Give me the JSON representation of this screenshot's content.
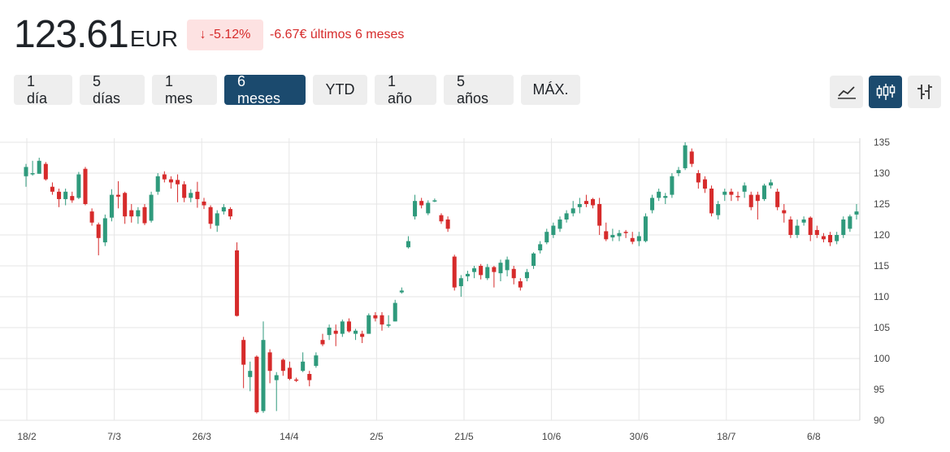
{
  "quote": {
    "price": "123.61",
    "currency": "EUR",
    "change_pct": "-5.12%",
    "change_abs": "-6.67€ últimos 6 meses",
    "down_color": "#d62b2b",
    "up_color": "#2f9a7c"
  },
  "ranges": [
    {
      "label": "1 día",
      "active": false
    },
    {
      "label": "5 días",
      "active": false
    },
    {
      "label": "1 mes",
      "active": false
    },
    {
      "label": "6 meses",
      "active": true
    },
    {
      "label": "YTD",
      "active": false
    },
    {
      "label": "1 año",
      "active": false
    },
    {
      "label": "5 años",
      "active": false
    },
    {
      "label": "MÁX.",
      "active": false
    }
  ],
  "chart_types": [
    {
      "icon": "line-chart-icon",
      "active": false
    },
    {
      "icon": "candlestick-icon",
      "active": true
    },
    {
      "icon": "ohlc-bars-icon",
      "active": false
    }
  ],
  "chart_data": {
    "type": "candlestick",
    "x_tick_labels": [
      "18/2",
      "7/3",
      "26/3",
      "14/4",
      "2/5",
      "21/5",
      "10/6",
      "30/6",
      "18/7",
      "6/8"
    ],
    "y_ticks": [
      90,
      95,
      100,
      105,
      110,
      115,
      120,
      125,
      130,
      135
    ],
    "ylim": [
      90,
      135
    ],
    "grid": true,
    "y_axis_position": "right",
    "series": [
      [
        129.5,
        131.0,
        127.8,
        131.5
      ],
      [
        130.0,
        130.0,
        129.6,
        132.0
      ],
      [
        129.9,
        132.0,
        129.9,
        132.5
      ],
      [
        131.5,
        129.0,
        128.8,
        131.8
      ],
      [
        127.8,
        127.0,
        126.5,
        128.5
      ],
      [
        127.0,
        125.8,
        124.5,
        127.5
      ],
      [
        125.8,
        127.0,
        124.8,
        127.5
      ],
      [
        126.3,
        125.6,
        125.2,
        127.0
      ],
      [
        126.0,
        129.8,
        125.8,
        130.2
      ],
      [
        130.7,
        125.0,
        124.8,
        131.0
      ],
      [
        123.8,
        122.0,
        121.5,
        124.3
      ],
      [
        121.7,
        119.5,
        116.7,
        122.0
      ],
      [
        118.8,
        122.7,
        118.2,
        123.3
      ],
      [
        122.8,
        126.5,
        122.2,
        127.4
      ],
      [
        126.5,
        126.2,
        124.3,
        128.7
      ],
      [
        126.8,
        123.0,
        121.8,
        127.0
      ],
      [
        124.0,
        123.0,
        122.0,
        125.0
      ],
      [
        123.0,
        124.0,
        121.8,
        124.5
      ],
      [
        124.5,
        121.9,
        121.6,
        125.0
      ],
      [
        122.3,
        126.5,
        122.0,
        127.0
      ],
      [
        127.0,
        129.5,
        126.5,
        130.0
      ],
      [
        129.8,
        129.0,
        128.5,
        130.3
      ],
      [
        129.0,
        128.5,
        127.5,
        129.5
      ],
      [
        128.9,
        128.2,
        125.3,
        129.8
      ],
      [
        128.2,
        126.0,
        125.3,
        128.7
      ],
      [
        126.0,
        126.8,
        125.3,
        127.4
      ],
      [
        127.0,
        125.8,
        124.4,
        128.6
      ],
      [
        125.4,
        124.8,
        124.2,
        126.0
      ],
      [
        124.5,
        121.8,
        121.0,
        124.8
      ],
      [
        121.5,
        123.5,
        120.5,
        124.0
      ],
      [
        123.8,
        124.5,
        123.3,
        125.0
      ],
      [
        124.2,
        123.0,
        122.5,
        124.5
      ],
      [
        117.5,
        106.9,
        106.8,
        118.8
      ],
      [
        103.0,
        99.0,
        95.2,
        103.5
      ],
      [
        97.0,
        98.0,
        94.7,
        99.5
      ],
      [
        100.3,
        91.3,
        91.1,
        100.5
      ],
      [
        91.5,
        103.0,
        91.2,
        106.0
      ],
      [
        101.0,
        98.0,
        96.0,
        101.5
      ],
      [
        96.5,
        97.3,
        91.5,
        97.8
      ],
      [
        99.8,
        98.0,
        97.2,
        100.0
      ],
      [
        98.5,
        96.7,
        96.5,
        99.5
      ],
      [
        96.6,
        96.5,
        96.2,
        96.9
      ],
      [
        98.0,
        99.5,
        97.8,
        101.0
      ],
      [
        97.5,
        96.5,
        95.5,
        98.0
      ],
      [
        98.8,
        100.5,
        98.5,
        101.0
      ],
      [
        103.0,
        102.3,
        102.0,
        104.0
      ],
      [
        103.8,
        105.0,
        103.0,
        105.5
      ],
      [
        104.5,
        104.0,
        102.0,
        105.5
      ],
      [
        104.0,
        106.0,
        103.5,
        106.3
      ],
      [
        106.0,
        104.4,
        104.2,
        106.5
      ],
      [
        104.0,
        104.5,
        103.0,
        104.8
      ],
      [
        104.0,
        103.5,
        102.5,
        104.5
      ],
      [
        104.0,
        107.0,
        104.0,
        107.3
      ],
      [
        107.0,
        106.5,
        106.0,
        107.5
      ],
      [
        107.0,
        105.5,
        104.5,
        107.5
      ],
      [
        105.3,
        105.5,
        105.0,
        107.0
      ],
      [
        106.0,
        109.0,
        106.0,
        109.5
      ],
      [
        110.7,
        111.0,
        110.5,
        111.5
      ],
      [
        118.0,
        119.0,
        117.8,
        119.8
      ],
      [
        123.0,
        125.5,
        122.5,
        126.5
      ],
      [
        125.5,
        124.8,
        124.3,
        126.0
      ],
      [
        123.5,
        125.2,
        123.2,
        125.6
      ],
      [
        125.5,
        125.6,
        125.3,
        125.9
      ],
      [
        123.2,
        122.2,
        121.8,
        123.5
      ],
      [
        122.5,
        121.0,
        120.5,
        123.0
      ],
      [
        116.5,
        111.5,
        111.0,
        116.8
      ],
      [
        111.7,
        113.0,
        110.0,
        113.5
      ],
      [
        113.3,
        113.7,
        112.5,
        114.2
      ],
      [
        114.0,
        114.6,
        113.0,
        115.0
      ],
      [
        115.0,
        113.5,
        112.8,
        115.3
      ],
      [
        113.0,
        114.8,
        112.7,
        115.3
      ],
      [
        114.8,
        114.0,
        111.5,
        115.0
      ],
      [
        113.8,
        115.5,
        112.5,
        116.0
      ],
      [
        114.3,
        116.0,
        113.3,
        116.5
      ],
      [
        114.5,
        113.0,
        112.0,
        115.0
      ],
      [
        112.5,
        111.5,
        111.0,
        113.0
      ],
      [
        113.0,
        114.0,
        112.5,
        114.5
      ],
      [
        115.0,
        117.0,
        114.5,
        117.2
      ],
      [
        117.5,
        118.5,
        117.0,
        119.0
      ],
      [
        118.8,
        120.5,
        118.5,
        121.0
      ],
      [
        120.0,
        121.5,
        119.5,
        122.0
      ],
      [
        121.0,
        122.5,
        120.5,
        123.0
      ],
      [
        122.5,
        123.5,
        122.0,
        124.0
      ],
      [
        123.5,
        124.3,
        123.0,
        125.5
      ],
      [
        124.5,
        125.0,
        123.5,
        126.0
      ],
      [
        125.5,
        125.0,
        124.5,
        126.5
      ],
      [
        125.8,
        124.8,
        124.3,
        126.0
      ],
      [
        125.0,
        121.5,
        120.0,
        126.0
      ],
      [
        120.6,
        119.3,
        119.0,
        122.0
      ],
      [
        119.6,
        120.0,
        119.0,
        121.0
      ],
      [
        119.8,
        120.3,
        119.0,
        120.8
      ],
      [
        120.5,
        120.3,
        119.5,
        120.8
      ],
      [
        119.5,
        118.9,
        118.5,
        120.5
      ],
      [
        119.0,
        119.8,
        118.2,
        120.5
      ],
      [
        119.0,
        123.0,
        118.8,
        123.5
      ],
      [
        124.0,
        126.0,
        123.5,
        126.5
      ],
      [
        126.0,
        127.0,
        125.5,
        127.5
      ],
      [
        126.0,
        126.3,
        125.0,
        126.8
      ],
      [
        126.5,
        129.5,
        126.0,
        130.0
      ],
      [
        130.0,
        130.5,
        129.5,
        131.0
      ],
      [
        130.8,
        134.5,
        130.5,
        135.0
      ],
      [
        133.5,
        131.5,
        131.0,
        134.0
      ],
      [
        130.0,
        128.5,
        127.5,
        130.5
      ],
      [
        129.0,
        127.5,
        126.8,
        129.5
      ],
      [
        127.5,
        123.5,
        123.0,
        128.0
      ],
      [
        123.2,
        125.0,
        122.5,
        125.5
      ],
      [
        126.5,
        127.0,
        125.5,
        127.5
      ],
      [
        127.0,
        126.5,
        125.5,
        127.5
      ],
      [
        126.3,
        126.2,
        125.5,
        127.0
      ],
      [
        127.0,
        128.0,
        126.0,
        128.5
      ],
      [
        126.5,
        124.5,
        124.0,
        127.0
      ],
      [
        126.5,
        125.5,
        122.5,
        127.0
      ],
      [
        125.8,
        128.0,
        125.5,
        128.3
      ],
      [
        128.0,
        128.5,
        127.5,
        129.0
      ],
      [
        127.0,
        124.5,
        124.0,
        127.5
      ],
      [
        124.0,
        123.5,
        122.0,
        125.0
      ],
      [
        122.5,
        120.0,
        119.5,
        123.0
      ],
      [
        120.0,
        121.5,
        119.5,
        122.5
      ],
      [
        122.0,
        122.5,
        121.5,
        123.0
      ],
      [
        122.8,
        120.0,
        119.0,
        123.0
      ],
      [
        120.8,
        120.0,
        119.5,
        121.5
      ],
      [
        119.8,
        119.3,
        118.8,
        120.3
      ],
      [
        120.0,
        118.8,
        118.2,
        120.5
      ],
      [
        119.0,
        120.0,
        118.5,
        120.5
      ],
      [
        120.0,
        122.5,
        119.5,
        123.0
      ],
      [
        121.0,
        123.0,
        120.5,
        123.3
      ],
      [
        123.3,
        123.8,
        122.5,
        125.0
      ]
    ]
  }
}
